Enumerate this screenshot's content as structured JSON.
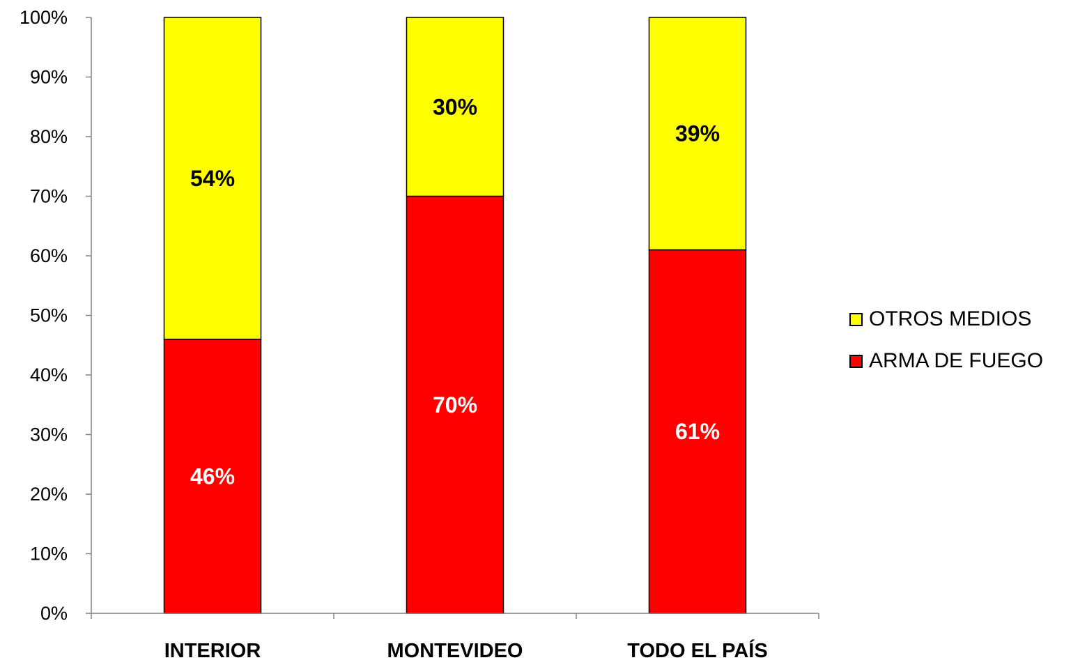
{
  "chart_data": {
    "type": "bar",
    "stacked": true,
    "categories": [
      "INTERIOR",
      "MONTEVIDEO",
      "TODO EL PAÍS"
    ],
    "series": [
      {
        "name": "ARMA DE FUEGO",
        "values": [
          46,
          70,
          61
        ],
        "labels": [
          "46%",
          "70%",
          "61%"
        ],
        "color": "#ff0000",
        "label_color": "#ffffff"
      },
      {
        "name": "OTROS MEDIOS",
        "values": [
          54,
          30,
          39
        ],
        "labels": [
          "54%",
          "30%",
          "39%"
        ],
        "color": "#ffff00",
        "label_color": "#000000"
      }
    ],
    "ylim": [
      0,
      100
    ],
    "yticks": [
      "0%",
      "10%",
      "20%",
      "30%",
      "40%",
      "50%",
      "60%",
      "70%",
      "80%",
      "90%",
      "100%"
    ],
    "legend_position": "right",
    "legend_order": [
      "OTROS MEDIOS",
      "ARMA DE FUEGO"
    ],
    "grid": false,
    "title": "",
    "xlabel": "",
    "ylabel": ""
  }
}
